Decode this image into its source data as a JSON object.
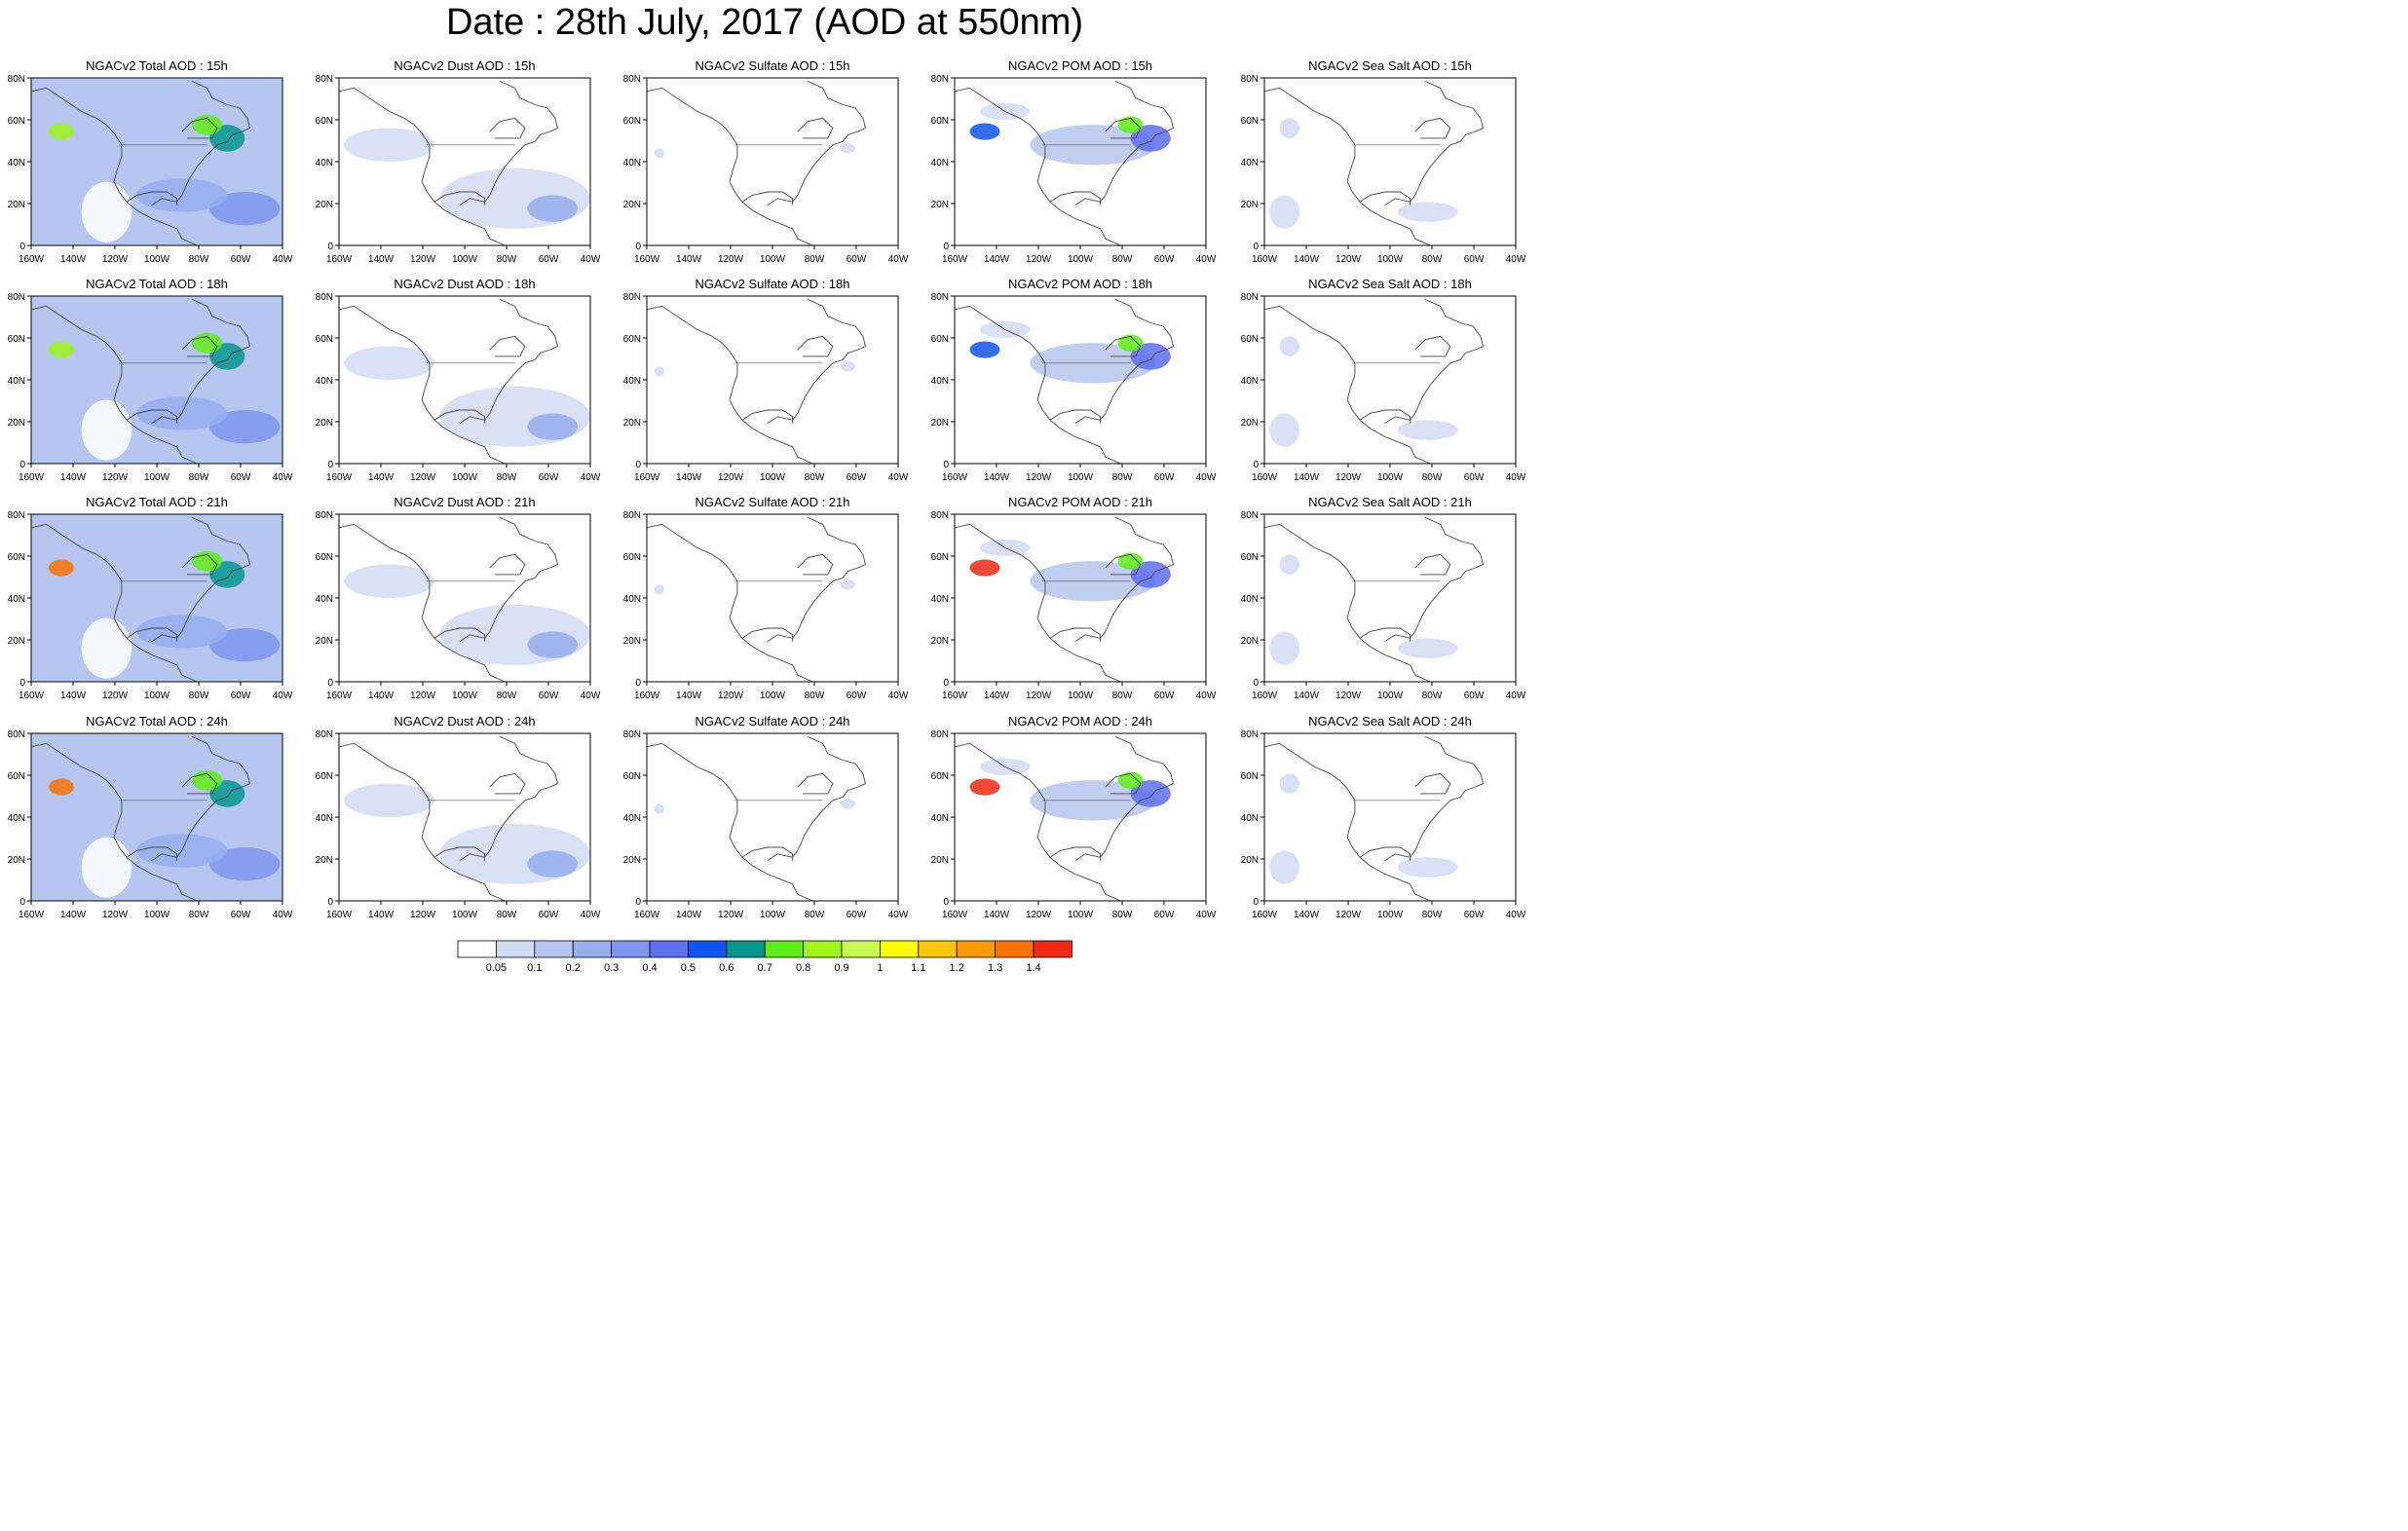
{
  "title": "Date : 28th July, 2017 (AOD at 550nm)",
  "x_tick_labels": [
    "160W",
    "140W",
    "120W",
    "100W",
    "80W",
    "60W",
    "40W"
  ],
  "y_tick_labels": [
    "0",
    "20N",
    "40N",
    "60N",
    "80N"
  ],
  "columns": [
    {
      "key": "total",
      "titles": [
        "NGACv2 Total AOD : 15h",
        "NGACv2 Total AOD : 18h",
        "NGACv2 Total AOD : 21h",
        "NGACv2 Total AOD : 24h"
      ]
    },
    {
      "key": "dust",
      "titles": [
        "NGACv2 Dust AOD : 15h",
        "NGACv2 Dust AOD : 18h",
        "NGACv2 Dust AOD : 21h",
        "NGACv2 Dust AOD : 24h"
      ]
    },
    {
      "key": "sulfate",
      "titles": [
        "NGACv2 Sulfate AOD : 15h",
        "NGACv2 Sulfate AOD : 18h",
        "NGACv2 Sulfate AOD : 21h",
        "NGACv2 Sulfate AOD : 24h"
      ]
    },
    {
      "key": "pom",
      "titles": [
        "NGACv2 POM AOD : 15h",
        "NGACv2 POM AOD : 18h",
        "NGACv2 POM AOD : 21h",
        "NGACv2 POM AOD : 24h"
      ]
    },
    {
      "key": "seasalt",
      "titles": [
        "NGACv2 Sea Salt AOD : 15h",
        "NGACv2 Sea Salt AOD : 18h",
        "NGACv2 Sea Salt AOD : 21h",
        "NGACv2 Sea Salt  AOD : 24h"
      ]
    }
  ],
  "colorbar": {
    "colors": [
      "#ffffff",
      "#d3dcf6",
      "#b6c6f0",
      "#96aef0",
      "#7f96ee",
      "#5e6ff0",
      "#0f55ee",
      "#06958e",
      "#5fec1a",
      "#9ff51c",
      "#c8fa50",
      "#fbfa0f",
      "#fbc70a",
      "#fb9b08",
      "#f87208",
      "#ee2a16"
    ],
    "labels": [
      "0.05",
      "0.1",
      "0.2",
      "0.3",
      "0.4",
      "0.5",
      "0.6",
      "0.7",
      "0.8",
      "0.9",
      "1",
      "1.1",
      "1.2",
      "1.3",
      "1.4"
    ]
  },
  "map_extent": {
    "lon": [
      -160,
      -40
    ],
    "lat": [
      0,
      80
    ]
  }
}
